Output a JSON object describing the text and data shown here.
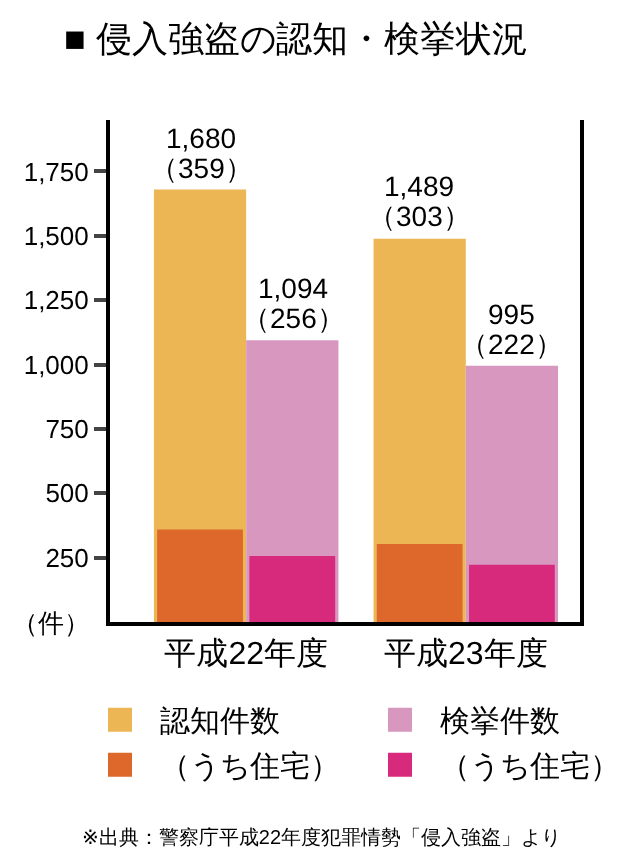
{
  "chart_data": {
    "type": "bar",
    "title": "■ 侵入強盗の認知・検挙状況",
    "ylabel": "（件）",
    "categories": [
      "平成22年度",
      "平成23年度"
    ],
    "series": [
      {
        "name": "認知件数",
        "color": "#ecb655",
        "values": [
          1680,
          1489
        ],
        "value_labels": [
          "1,680",
          "1,489"
        ]
      },
      {
        "name": "検挙件数",
        "color": "#d897bf",
        "values": [
          1094,
          995
        ],
        "value_labels": [
          "1,094",
          "995"
        ]
      },
      {
        "name": "（うち住宅）",
        "color": "#de672c",
        "values": [
          359,
          303
        ]
      },
      {
        "name": "（うち住宅）",
        "color": "#d82a7c",
        "values": [
          256,
          222
        ]
      }
    ],
    "ylim": [
      0,
      1950
    ],
    "yticks": [
      250,
      500,
      750,
      {
        "value": 1000,
        "label": "1,000"
      },
      {
        "value": 1250,
        "label": "1,250"
      },
      {
        "value": 1500,
        "label": "1,500"
      },
      {
        "value": 1750,
        "label": "1,750"
      }
    ],
    "legend": "bottom",
    "annotations": [
      {
        "text": "（359）",
        "x": "平成22年度",
        "y": 1680
      },
      {
        "text": "（256）",
        "x": "平成22年度",
        "y": 1094
      },
      {
        "text": "（303）",
        "x": "平成23年度",
        "y": 1489
      },
      {
        "text": "（222）",
        "x": "平成23年度",
        "y": 995
      },
      "※出典：警察庁平成22年度犯罪情勢「侵入強盗」より"
    ]
  }
}
